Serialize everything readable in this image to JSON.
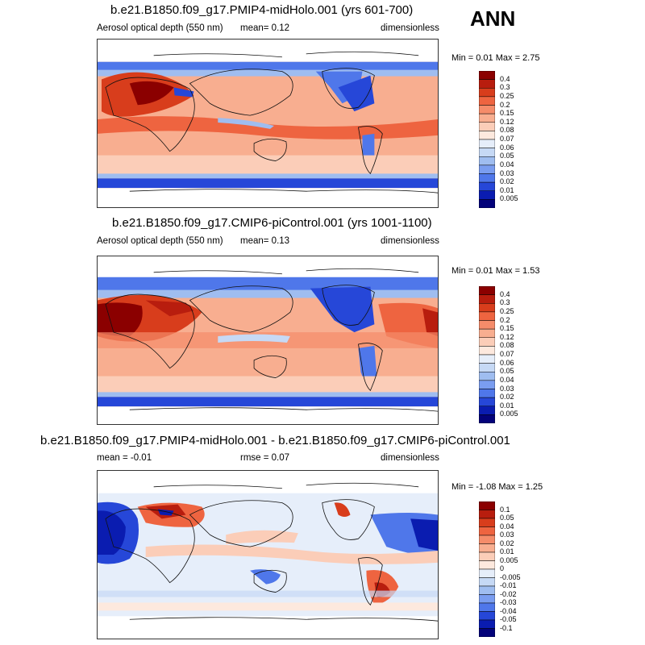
{
  "season": "ANN",
  "panels": [
    {
      "title": "b.e21.B1850.f09_g17.PMIP4-midHolo.001 (yrs 601-700)",
      "left_label": "Aerosol optical depth (550 nm)",
      "center_label": "mean=   0.12",
      "right_label": "dimensionless",
      "minmax": "Min =   0.01 Max =   2.75",
      "colorbar": {
        "labels": [
          "0.4",
          "0.3",
          "0.25",
          "0.2",
          "0.15",
          "0.12",
          "0.08",
          "0.07",
          "0.06",
          "0.05",
          "0.04",
          "0.03",
          "0.02",
          "0.01",
          "0.005"
        ],
        "colors": [
          "#8b0000",
          "#b81d0e",
          "#d83d1c",
          "#ee6440",
          "#f58c6a",
          "#f8ae90",
          "#fbcdb8",
          "#fde9de",
          "#e6eefa",
          "#c6d9f5",
          "#9fbdf0",
          "#7a9df0",
          "#4f77ea",
          "#2647d8",
          "#0a1cb0",
          "#03027a"
        ]
      },
      "map": "midholo"
    },
    {
      "title": "b.e21.B1850.f09_g17.CMIP6-piControl.001 (yrs 1001-1100)",
      "left_label": "Aerosol optical depth (550 nm)",
      "center_label": "mean=   0.13",
      "right_label": "dimensionless",
      "minmax": "Min =   0.01 Max =   1.53",
      "colorbar": {
        "labels": [
          "0.4",
          "0.3",
          "0.25",
          "0.2",
          "0.15",
          "0.12",
          "0.08",
          "0.07",
          "0.06",
          "0.05",
          "0.04",
          "0.03",
          "0.02",
          "0.01",
          "0.005"
        ],
        "colors": [
          "#8b0000",
          "#b81d0e",
          "#d83d1c",
          "#ee6440",
          "#f58c6a",
          "#f8ae90",
          "#fbcdb8",
          "#fde9de",
          "#e6eefa",
          "#c6d9f5",
          "#9fbdf0",
          "#7a9df0",
          "#4f77ea",
          "#2647d8",
          "#0a1cb0",
          "#03027a"
        ]
      },
      "map": "picontrol"
    },
    {
      "title": "b.e21.B1850.f09_g17.PMIP4-midHolo.001 - b.e21.B1850.f09_g17.CMIP6-piControl.001",
      "left_label": "mean =  -0.01",
      "center_label": "rmse =   0.07",
      "right_label": "dimensionless",
      "minmax": "Min =  -1.08 Max =   1.25",
      "colorbar": {
        "labels": [
          "0.1",
          "0.05",
          "0.04",
          "0.03",
          "0.02",
          "0.01",
          "0.005",
          "0",
          "-0.005",
          "-0.01",
          "-0.02",
          "-0.03",
          "-0.04",
          "-0.05",
          "-0.1"
        ],
        "colors": [
          "#8b0000",
          "#b81d0e",
          "#d83d1c",
          "#ee6440",
          "#f58c6a",
          "#f8ae90",
          "#fbcdb8",
          "#fde9de",
          "#e6eefa",
          "#c6d9f5",
          "#9fbdf0",
          "#7a9df0",
          "#4f77ea",
          "#2647d8",
          "#0a1cb0",
          "#03027a"
        ]
      },
      "map": "difference"
    }
  ]
}
